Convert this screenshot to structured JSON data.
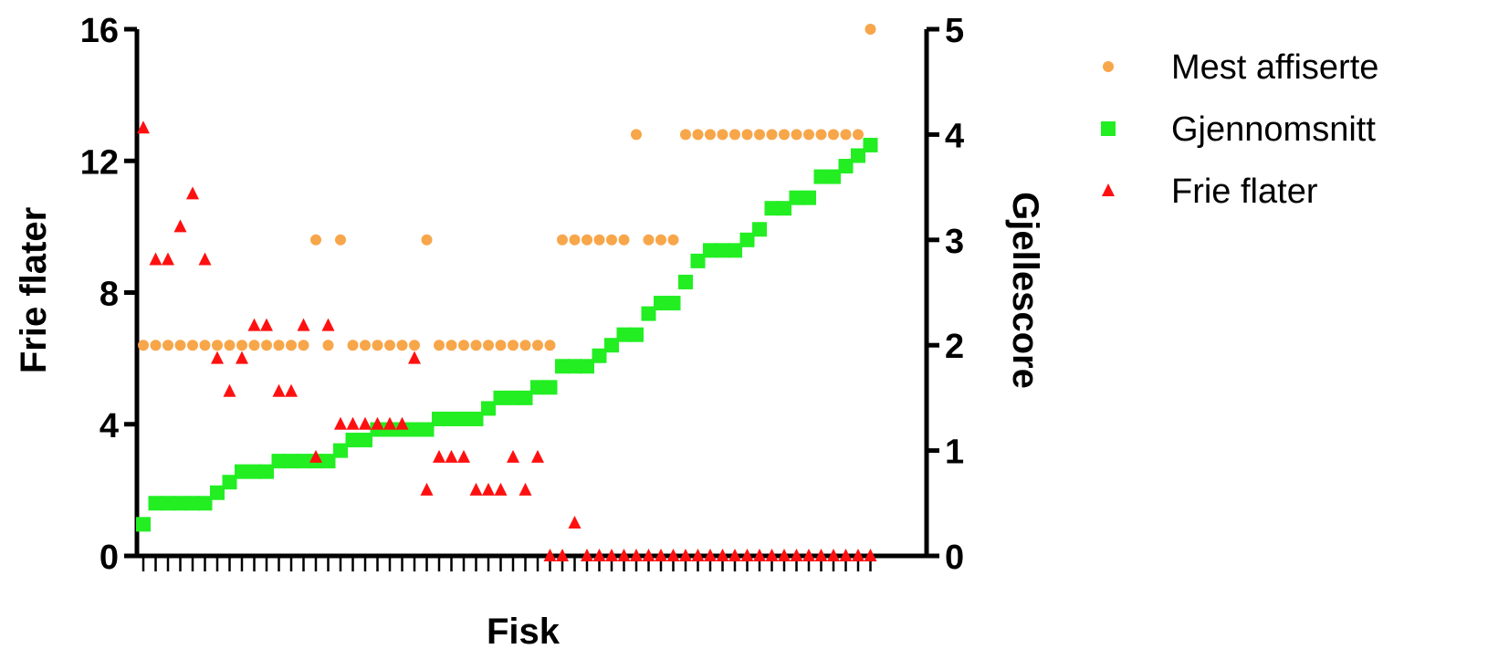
{
  "chart_data": {
    "type": "scatter",
    "xlabel": "Fisk",
    "ylabel": "Frie flater",
    "y2label": "Gjellescore",
    "ylim": [
      0,
      16
    ],
    "y2lim": [
      0,
      5
    ],
    "yticks": [
      "0",
      "4",
      "8",
      "12",
      "16"
    ],
    "y2ticks": [
      "0",
      "1",
      "2",
      "3",
      "4",
      "5"
    ],
    "n_points": 60,
    "legend_position": "right",
    "series": [
      {
        "name": "Mest affiserte",
        "marker": "circle",
        "color": "#F7A64A",
        "axis": "right",
        "values": [
          2,
          2,
          2,
          2,
          2,
          2,
          2,
          2,
          2,
          2,
          2,
          2,
          2,
          2,
          3,
          2,
          3,
          2,
          2,
          2,
          2,
          2,
          2,
          3,
          2,
          2,
          2,
          2,
          2,
          2,
          2,
          2,
          2,
          2,
          3,
          3,
          3,
          3,
          3,
          3,
          4,
          3,
          3,
          3,
          4,
          4,
          4,
          4,
          4,
          4,
          4,
          4,
          4,
          4,
          4,
          4,
          4,
          4,
          4,
          5
        ]
      },
      {
        "name": "Gjennomsnitt",
        "marker": "square",
        "color": "#22EE22",
        "axis": "right",
        "values": [
          0.3,
          0.5,
          0.5,
          0.5,
          0.5,
          0.5,
          0.6,
          0.7,
          0.8,
          0.8,
          0.8,
          0.9,
          0.9,
          0.9,
          0.9,
          0.9,
          1.0,
          1.1,
          1.1,
          1.2,
          1.2,
          1.2,
          1.2,
          1.2,
          1.3,
          1.3,
          1.3,
          1.3,
          1.4,
          1.5,
          1.5,
          1.5,
          1.6,
          1.6,
          1.8,
          1.8,
          1.8,
          1.9,
          2.0,
          2.1,
          2.1,
          2.3,
          2.4,
          2.4,
          2.6,
          2.8,
          2.9,
          2.9,
          2.9,
          3.0,
          3.1,
          3.3,
          3.3,
          3.4,
          3.4,
          3.6,
          3.6,
          3.7,
          3.8,
          3.9
        ]
      },
      {
        "name": "Frie flater",
        "marker": "triangle",
        "color": "#FF1010",
        "axis": "left",
        "values": [
          13,
          9,
          9,
          10,
          11,
          9,
          6,
          5,
          6,
          7,
          7,
          5,
          5,
          7,
          3,
          7,
          4,
          4,
          4,
          4,
          4,
          4,
          6,
          2,
          3,
          3,
          3,
          2,
          2,
          2,
          3,
          2,
          3,
          0,
          0,
          1,
          0,
          0,
          0,
          0,
          0,
          0,
          0,
          0,
          0,
          0,
          0,
          0,
          0,
          0,
          0,
          0,
          0,
          0,
          0,
          0,
          0,
          0,
          0,
          0
        ]
      }
    ]
  }
}
